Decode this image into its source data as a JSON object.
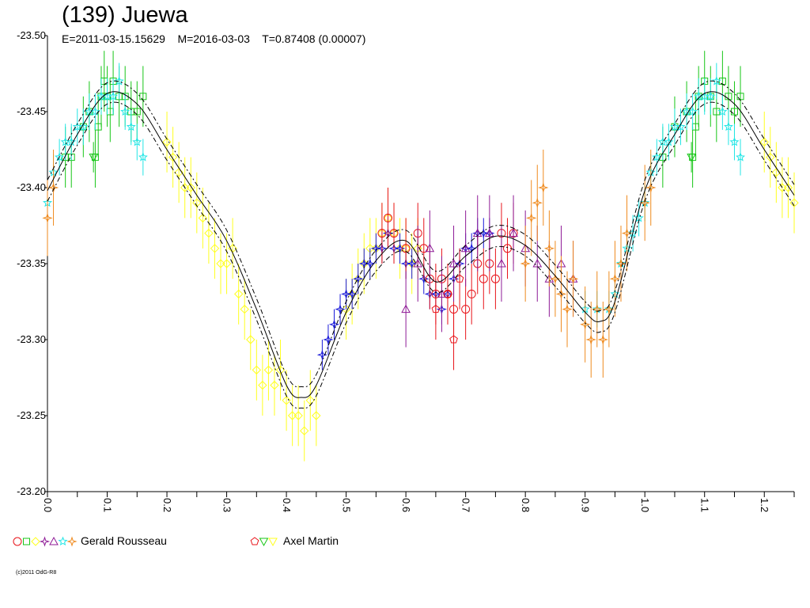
{
  "header": {
    "title": "(139) Juewa",
    "subtitle": "E=2011-03-15.15629    M=2016-03-03    T=0.87408 (0.00007)"
  },
  "colors": {
    "red": "#e8141a",
    "green": "#16c616",
    "yellow": "#ffff1e",
    "blue": "#1a1ad9",
    "purple": "#8e1a96",
    "cyan": "#22e6e6",
    "orange": "#ef8a1e",
    "model": "#000000"
  },
  "legend": [
    {
      "label": "Gerald Rousseau",
      "symbols": [
        "circle",
        "square",
        "diamond",
        "star4",
        "triangle",
        "star",
        "cross4"
      ],
      "colors": [
        "red",
        "green",
        "yellow",
        "purple",
        "purple",
        "cyan",
        "orange"
      ]
    },
    {
      "label": "Axel Martin",
      "symbols": [
        "pentagon",
        "triangle-down",
        "triangle-down"
      ],
      "colors": [
        "red",
        "green",
        "yellow"
      ]
    }
  ],
  "copyright": "(c)2011 OdG-R8",
  "chart_data": {
    "type": "scatter",
    "xlim": [
      0.0,
      1.25
    ],
    "ylim": [
      -23.2,
      -23.5
    ],
    "y_inverted": true,
    "x_ticks": [
      "0.0",
      "0.1",
      "0.2",
      "0.3",
      "0.4",
      "0.5",
      "0.6",
      "0.7",
      "0.8",
      "0.9",
      "1.0",
      "1.1",
      "1.2"
    ],
    "y_ticks": [
      "-23.50",
      "-23.45",
      "-23.40",
      "-23.35",
      "-23.30",
      "-23.25",
      "-23.20"
    ],
    "model_curve": {
      "x": [
        0.0,
        0.05,
        0.1,
        0.15,
        0.2,
        0.25,
        0.3,
        0.35,
        0.4,
        0.425,
        0.45,
        0.5,
        0.55,
        0.6,
        0.65,
        0.7,
        0.75,
        0.8,
        0.85,
        0.9,
        0.925,
        0.95,
        1.0,
        1.05,
        1.1,
        1.15,
        1.2,
        1.25
      ],
      "y": [
        -23.398,
        -23.435,
        -23.462,
        -23.455,
        -23.425,
        -23.395,
        -23.365,
        -23.32,
        -23.27,
        -23.262,
        -23.27,
        -23.318,
        -23.352,
        -23.365,
        -23.338,
        -23.355,
        -23.368,
        -23.362,
        -23.342,
        -23.318,
        -23.312,
        -23.325,
        -23.398,
        -23.435,
        -23.462,
        -23.455,
        -23.425,
        -23.395
      ],
      "band": 0.007
    },
    "series": [
      {
        "name": "Gerald Rousseau",
        "color": "green",
        "symbol": "square",
        "err": 0.02,
        "x": [
          0.03,
          0.04,
          0.06,
          0.07,
          0.08,
          0.085,
          0.09,
          0.095,
          0.1,
          0.105,
          0.11,
          0.12,
          0.13,
          0.14,
          0.15,
          0.16,
          1.03,
          1.05,
          1.07,
          1.08,
          1.085,
          1.09,
          1.1,
          1.11,
          1.12,
          1.13,
          1.14,
          1.15,
          1.16
        ],
        "y": [
          -23.42,
          -23.42,
          -23.44,
          -23.45,
          -23.42,
          -23.44,
          -23.46,
          -23.47,
          -23.46,
          -23.45,
          -23.47,
          -23.46,
          -23.46,
          -23.45,
          -23.45,
          -23.46,
          -23.42,
          -23.44,
          -23.45,
          -23.42,
          -23.44,
          -23.46,
          -23.47,
          -23.46,
          -23.45,
          -23.47,
          -23.46,
          -23.45,
          -23.46
        ]
      },
      {
        "name": "Gerald Rousseau",
        "color": "cyan",
        "symbol": "star",
        "err": 0.012,
        "x": [
          0.0,
          0.01,
          0.02,
          0.03,
          0.04,
          0.05,
          0.06,
          0.07,
          0.08,
          0.09,
          0.1,
          0.11,
          0.12,
          0.13,
          0.14,
          0.15,
          0.16,
          0.9,
          0.92,
          0.94,
          0.95,
          0.96,
          0.97,
          0.98,
          0.99,
          1.0,
          1.01,
          1.02,
          1.03,
          1.04,
          1.05,
          1.06,
          1.07,
          1.08,
          1.09,
          1.1,
          1.11,
          1.12,
          1.13,
          1.14,
          1.15,
          1.16
        ],
        "y": [
          -23.39,
          -23.41,
          -23.42,
          -23.43,
          -23.43,
          -23.44,
          -23.44,
          -23.45,
          -23.45,
          -23.46,
          -23.46,
          -23.46,
          -23.47,
          -23.45,
          -23.44,
          -23.43,
          -23.42,
          -23.32,
          -23.32,
          -23.32,
          -23.33,
          -23.35,
          -23.36,
          -23.37,
          -23.38,
          -23.39,
          -23.41,
          -23.42,
          -23.43,
          -23.43,
          -23.44,
          -23.44,
          -23.45,
          -23.45,
          -23.46,
          -23.46,
          -23.46,
          -23.47,
          -23.45,
          -23.44,
          -23.43,
          -23.42
        ]
      },
      {
        "name": "Axel Martin",
        "color": "green",
        "symbol": "triangle-down",
        "err": 0.01,
        "x": [
          0.077,
          1.078
        ],
        "y": [
          -23.42,
          -23.42
        ]
      },
      {
        "name": "Gerald Rousseau",
        "color": "yellow",
        "symbol": "diamond",
        "err": 0.02,
        "x": [
          0.2,
          0.21,
          0.22,
          0.23,
          0.24,
          0.25,
          0.26,
          0.27,
          0.28,
          0.29,
          0.3,
          0.31,
          0.32,
          0.33,
          0.34,
          0.35,
          0.36,
          0.37,
          0.38,
          0.39,
          0.4,
          0.41,
          0.42,
          0.43,
          0.44,
          0.45,
          0.5,
          0.51,
          0.52,
          0.53,
          0.54,
          0.55,
          0.56,
          0.57,
          0.58,
          0.59,
          0.6,
          0.61,
          0.62,
          1.2,
          1.21,
          1.22,
          1.23,
          1.24,
          1.25
        ],
        "y": [
          -23.43,
          -23.42,
          -23.41,
          -23.4,
          -23.4,
          -23.39,
          -23.38,
          -23.37,
          -23.36,
          -23.35,
          -23.35,
          -23.36,
          -23.33,
          -23.32,
          -23.3,
          -23.28,
          -23.27,
          -23.28,
          -23.27,
          -23.28,
          -23.26,
          -23.25,
          -23.25,
          -23.24,
          -23.26,
          -23.25,
          -23.32,
          -23.33,
          -23.34,
          -23.35,
          -23.36,
          -23.36,
          -23.37,
          -23.38,
          -23.37,
          -23.36,
          -23.36,
          -23.35,
          -23.36,
          -23.43,
          -23.42,
          -23.41,
          -23.4,
          -23.4,
          -23.39
        ]
      },
      {
        "name": "Gerald Rousseau",
        "color": "blue",
        "symbol": "star4",
        "err": 0.01,
        "x": [
          0.46,
          0.47,
          0.48,
          0.49,
          0.5,
          0.51,
          0.52,
          0.53,
          0.54,
          0.55,
          0.56,
          0.57,
          0.58,
          0.59,
          0.6,
          0.61,
          0.63,
          0.64,
          0.65,
          0.66,
          0.67,
          0.68,
          0.69,
          0.7,
          0.71,
          0.72,
          0.73,
          0.74
        ],
        "y": [
          -23.29,
          -23.3,
          -23.31,
          -23.32,
          -23.33,
          -23.33,
          -23.34,
          -23.35,
          -23.35,
          -23.36,
          -23.36,
          -23.37,
          -23.36,
          -23.36,
          -23.35,
          -23.35,
          -23.34,
          -23.33,
          -23.33,
          -23.32,
          -23.33,
          -23.34,
          -23.35,
          -23.36,
          -23.36,
          -23.37,
          -23.37,
          -23.37
        ]
      },
      {
        "name": "Gerald Rousseau",
        "color": "red",
        "symbol": "circle",
        "err": 0.02,
        "x": [
          0.56,
          0.57,
          0.58,
          0.6,
          0.62,
          0.63,
          0.64,
          0.65,
          0.66,
          0.67,
          0.68,
          0.7,
          0.71,
          0.72,
          0.73,
          0.74,
          0.75,
          0.76,
          0.77,
          0.78
        ],
        "y": [
          -23.37,
          -23.38,
          -23.37,
          -23.36,
          -23.37,
          -23.36,
          -23.34,
          -23.33,
          -23.34,
          -23.33,
          -23.32,
          -23.32,
          -23.33,
          -23.35,
          -23.34,
          -23.35,
          -23.34,
          -23.37,
          -23.36,
          -23.37
        ]
      },
      {
        "name": "Axel Martin",
        "color": "red",
        "symbol": "pentagon",
        "err": 0.02,
        "x": [
          0.65,
          0.67,
          0.68,
          0.69
        ],
        "y": [
          -23.32,
          -23.33,
          -23.3,
          -23.34
        ]
      },
      {
        "name": "Gerald Rousseau",
        "color": "purple",
        "symbol": "triangle",
        "err": 0.025,
        "x": [
          0.6,
          0.62,
          0.64,
          0.66,
          0.68,
          0.7,
          0.72,
          0.74,
          0.76,
          0.78,
          0.8,
          0.82,
          0.84,
          0.86,
          0.88
        ],
        "y": [
          -23.32,
          -23.35,
          -23.36,
          -23.33,
          -23.35,
          -23.36,
          -23.37,
          -23.37,
          -23.35,
          -23.37,
          -23.36,
          -23.35,
          -23.34,
          -23.35,
          -23.34
        ]
      },
      {
        "name": "Gerald Rousseau",
        "color": "orange",
        "symbol": "cross4",
        "err": 0.025,
        "x": [
          0.0,
          0.01,
          0.8,
          0.81,
          0.82,
          0.83,
          0.84,
          0.85,
          0.86,
          0.87,
          0.88,
          0.9,
          0.91,
          0.92,
          0.93,
          0.94,
          0.95,
          0.96,
          0.97,
          1.0,
          1.01
        ],
        "y": [
          -23.38,
          -23.4,
          -23.35,
          -23.38,
          -23.39,
          -23.4,
          -23.36,
          -23.34,
          -23.33,
          -23.32,
          -23.34,
          -23.31,
          -23.3,
          -23.32,
          -23.3,
          -23.32,
          -23.34,
          -23.35,
          -23.37,
          -23.39,
          -23.4
        ]
      }
    ]
  }
}
